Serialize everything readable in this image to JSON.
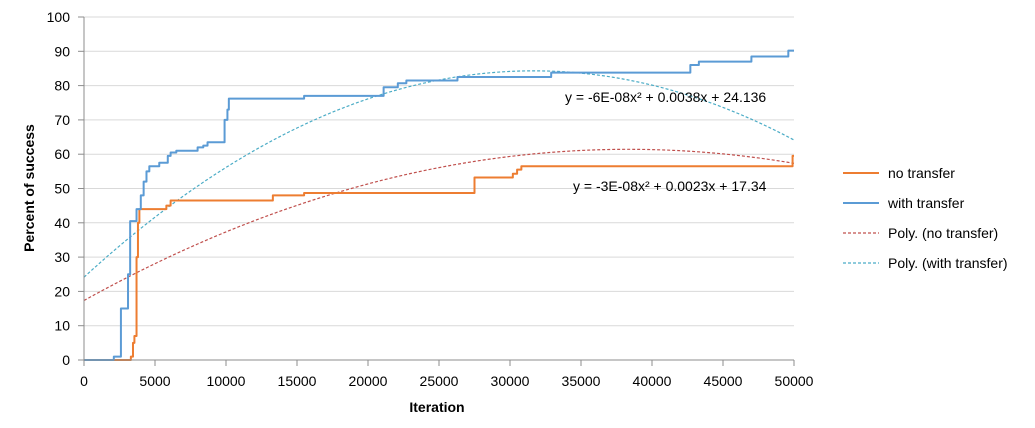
{
  "chart_data": {
    "type": "line",
    "title": "",
    "xlabel": "Iteration",
    "ylabel": "Percent of success",
    "xlim": [
      0,
      50000
    ],
    "ylim": [
      0,
      100
    ],
    "x_ticks": [
      "0",
      "5000",
      "10000",
      "15000",
      "20000",
      "25000",
      "30000",
      "35000",
      "40000",
      "45000",
      "50000"
    ],
    "y_ticks": [
      "0",
      "10",
      "20",
      "30",
      "40",
      "50",
      "60",
      "70",
      "80",
      "90",
      "100"
    ],
    "grid": "horizontal",
    "legend_position": "right",
    "series": [
      {
        "name": "no transfer",
        "color": "#ED7D31",
        "style": "step",
        "points": [
          [
            0,
            0
          ],
          [
            3300,
            0
          ],
          [
            3300,
            1
          ],
          [
            3450,
            1
          ],
          [
            3450,
            5
          ],
          [
            3550,
            5
          ],
          [
            3550,
            7
          ],
          [
            3700,
            7
          ],
          [
            3700,
            30
          ],
          [
            3800,
            30
          ],
          [
            3800,
            40
          ],
          [
            3900,
            40
          ],
          [
            3900,
            44
          ],
          [
            5800,
            44
          ],
          [
            5800,
            45
          ],
          [
            6100,
            45
          ],
          [
            6100,
            46.5
          ],
          [
            13300,
            46.5
          ],
          [
            13300,
            48
          ],
          [
            15500,
            48
          ],
          [
            15500,
            48.7
          ],
          [
            27500,
            48.7
          ],
          [
            27500,
            53.2
          ],
          [
            30200,
            53.2
          ],
          [
            30200,
            54.3
          ],
          [
            30500,
            54.3
          ],
          [
            30500,
            55.5
          ],
          [
            30800,
            55.5
          ],
          [
            30800,
            56.5
          ],
          [
            49900,
            56.5
          ],
          [
            49900,
            59.5
          ],
          [
            50000,
            59.5
          ]
        ]
      },
      {
        "name": "with transfer",
        "color": "#5B9BD5",
        "style": "step",
        "points": [
          [
            0,
            0
          ],
          [
            2100,
            0
          ],
          [
            2100,
            1
          ],
          [
            2600,
            1
          ],
          [
            2600,
            15
          ],
          [
            3100,
            15
          ],
          [
            3100,
            25
          ],
          [
            3250,
            25
          ],
          [
            3250,
            40.5
          ],
          [
            3700,
            40.5
          ],
          [
            3700,
            44
          ],
          [
            4000,
            44
          ],
          [
            4000,
            48
          ],
          [
            4200,
            48
          ],
          [
            4200,
            52
          ],
          [
            4400,
            52
          ],
          [
            4400,
            55
          ],
          [
            4600,
            55
          ],
          [
            4600,
            56.5
          ],
          [
            5300,
            56.5
          ],
          [
            5300,
            57.5
          ],
          [
            5900,
            57.5
          ],
          [
            5900,
            59.5
          ],
          [
            6100,
            59.5
          ],
          [
            6100,
            60.5
          ],
          [
            6500,
            60.5
          ],
          [
            6500,
            61
          ],
          [
            8000,
            61
          ],
          [
            8000,
            62
          ],
          [
            8400,
            62
          ],
          [
            8400,
            62.5
          ],
          [
            8700,
            62.5
          ],
          [
            8700,
            63.5
          ],
          [
            9900,
            63.5
          ],
          [
            9900,
            70
          ],
          [
            10100,
            70
          ],
          [
            10100,
            73
          ],
          [
            10200,
            73
          ],
          [
            10200,
            76.2
          ],
          [
            15500,
            76.2
          ],
          [
            15500,
            77
          ],
          [
            21100,
            77
          ],
          [
            21100,
            79.5
          ],
          [
            22100,
            79.5
          ],
          [
            22100,
            80.7
          ],
          [
            22700,
            80.7
          ],
          [
            22700,
            81.5
          ],
          [
            26300,
            81.5
          ],
          [
            26300,
            82.5
          ],
          [
            32900,
            82.5
          ],
          [
            32900,
            83.8
          ],
          [
            42700,
            83.8
          ],
          [
            42700,
            86
          ],
          [
            43300,
            86
          ],
          [
            43300,
            87
          ],
          [
            47000,
            87
          ],
          [
            47000,
            88.5
          ],
          [
            49600,
            88.5
          ],
          [
            49600,
            90.2
          ],
          [
            50000,
            90.2
          ]
        ]
      }
    ],
    "trendlines": [
      {
        "name": "Poly. (no transfer)",
        "color": "#C0504D",
        "type": "polynomial",
        "coefficients": [
          17.34,
          0.0023,
          -3e-08
        ],
        "equation": "y = -3E-08x² + 0.0023x + 17.34"
      },
      {
        "name": "Poly. (with transfer)",
        "color": "#4BACC6",
        "type": "polynomial",
        "coefficients": [
          24.136,
          0.0038,
          -6e-08
        ],
        "equation": "y = -6E-08x² + 0.0038x + 24.136"
      }
    ]
  }
}
